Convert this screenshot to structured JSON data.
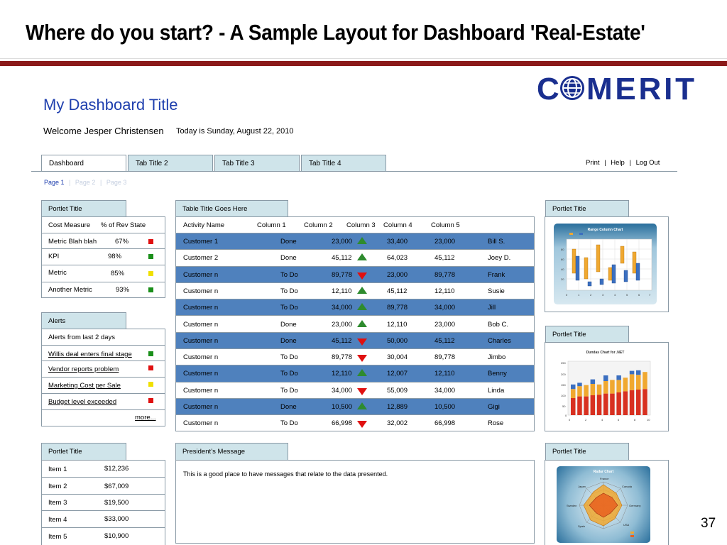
{
  "slide": {
    "title": "Where do you start?  - A Sample Layout for Dashboard 'Real-Estate'",
    "page_number": "37"
  },
  "logo": {
    "text": "COMERIT",
    "color": "#1a2f8f"
  },
  "header": {
    "title": "My Dashboard Title",
    "welcome": "Welcome Jesper Christensen",
    "today": "Today is  Sunday, August 22, 2010"
  },
  "tabs": [
    "Dashboard",
    "Tab Title 2",
    "Tab Title 3",
    "Tab Title 4"
  ],
  "toplinks": {
    "print": "Print",
    "help": "Help",
    "logout": "Log Out",
    "sep": "|"
  },
  "pages": {
    "p1": "Page 1",
    "p2": "Page 2",
    "p3": "Page 3",
    "sep": "|"
  },
  "kpi": {
    "tab": "Portlet Title",
    "headers": [
      "Cost Measure",
      "% of Rev",
      "State"
    ],
    "rows": [
      {
        "name": "Metric Blah blah",
        "pct": "67%",
        "color": "#e01010"
      },
      {
        "name": "KPI",
        "pct": "98%",
        "color": "#1a8f1a"
      },
      {
        "name": "Metric",
        "pct": "85%",
        "color": "#f0e000"
      },
      {
        "name": "Another Metric",
        "pct": "93%",
        "color": "#1a8f1a"
      }
    ]
  },
  "alerts": {
    "tab": "Alerts",
    "heading": "Alerts from last 2 days",
    "items": [
      {
        "label": "Willis deal enters final stage",
        "color": "#1a8f1a"
      },
      {
        "label": "Vendor reports problem",
        "color": "#e01010"
      },
      {
        "label": "Marketing Cost per Sale",
        "color": "#f0e000"
      },
      {
        "label": "Budget level exceeded",
        "color": "#e01010"
      }
    ],
    "more": "more..."
  },
  "table": {
    "tab": "Table Title Goes Here",
    "headers": [
      "Activity Name",
      "Column 1",
      "Column 2",
      "Column 3",
      "Column 4",
      "Column 5"
    ],
    "rows": [
      {
        "name": "Customer 1",
        "status": "Done",
        "v1": "23,000",
        "dir": "up",
        "v2": "33,400",
        "v3": "23,000",
        "person": "Bill S."
      },
      {
        "name": "Customer 2",
        "status": "Done",
        "v1": "45,112",
        "dir": "up",
        "v2": "64,023",
        "v3": "45,112",
        "person": "Joey D."
      },
      {
        "name": "Customer n",
        "status": "To Do",
        "v1": "89,778",
        "dir": "down",
        "v2": "23,000",
        "v3": "89,778",
        "person": "Frank"
      },
      {
        "name": "Customer n",
        "status": "To Do",
        "v1": "12,110",
        "dir": "up",
        "v2": "45,112",
        "v3": "12,110",
        "person": "Susie"
      },
      {
        "name": "Customer n",
        "status": "To Do",
        "v1": "34,000",
        "dir": "up",
        "v2": "89,778",
        "v3": "34,000",
        "person": "Jill"
      },
      {
        "name": "Customer n",
        "status": "Done",
        "v1": "23,000",
        "dir": "up",
        "v2": "12,110",
        "v3": "23,000",
        "person": "Bob C."
      },
      {
        "name": "Customer n",
        "status": "Done",
        "v1": "45,112",
        "dir": "down",
        "v2": "50,000",
        "v3": "45,112",
        "person": "Charles"
      },
      {
        "name": "Customer n",
        "status": "To Do",
        "v1": "89,778",
        "dir": "down",
        "v2": "30,004",
        "v3": "89,778",
        "person": "Jimbo"
      },
      {
        "name": "Customer n",
        "status": "To Do",
        "v1": "12,110",
        "dir": "up",
        "v2": "12,007",
        "v3": "12,110",
        "person": "Benny"
      },
      {
        "name": "Customer n",
        "status": "To Do",
        "v1": "34,000",
        "dir": "down",
        "v2": "55,009",
        "v3": "34,000",
        "person": "Linda"
      },
      {
        "name": "Customer n",
        "status": "Done",
        "v1": "10,500",
        "dir": "up",
        "v2": "12,889",
        "v3": "10,500",
        "person": "Gigi"
      },
      {
        "name": "Customer n",
        "status": "To Do",
        "v1": "66,998",
        "dir": "down",
        "v2": "32,002",
        "v3": "66,998",
        "person": "Rose"
      }
    ]
  },
  "items": {
    "tab": "Portlet Title",
    "rows": [
      {
        "name": "Item 1",
        "value": "$12,236"
      },
      {
        "name": "Item 2",
        "value": "$67,009"
      },
      {
        "name": "Item 3",
        "value": "$19,500"
      },
      {
        "name": "Item 4",
        "value": "$33,000"
      },
      {
        "name": "Item 5",
        "value": "$10,900"
      }
    ]
  },
  "message": {
    "tab": "President’s Message",
    "text": "This is a good place to have messages that relate to the data presented."
  },
  "portlets": {
    "range": {
      "tab": "Portlet Title",
      "chart_title": "Range Column Chart"
    },
    "dundas": {
      "tab": "Portlet Title",
      "chart_title": "Dundas Chart for .NET"
    },
    "radar": {
      "tab": "Portlet Title",
      "chart_title": "Radar Chart"
    }
  }
}
